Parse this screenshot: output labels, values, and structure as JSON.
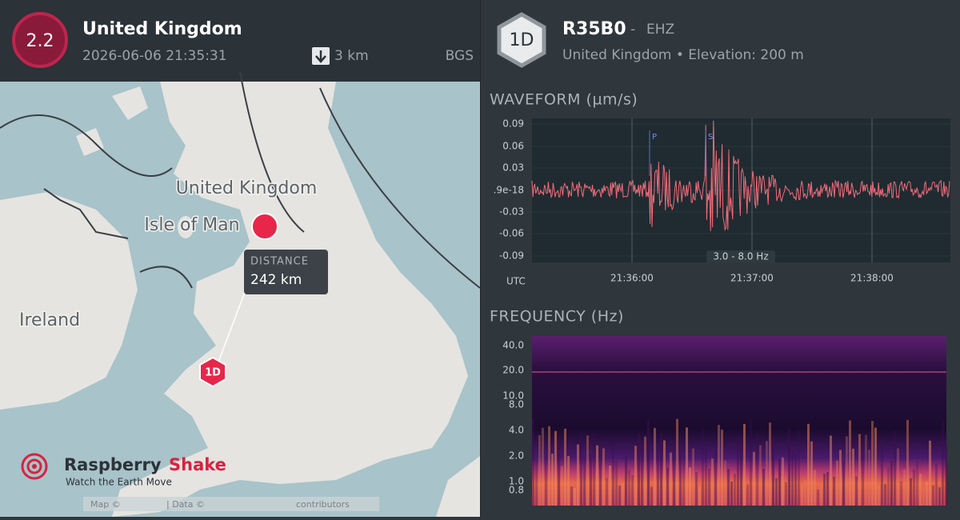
{
  "event": {
    "magnitude": "2.2",
    "region": "United Kingdom",
    "time": "2026-06-06 21:35:31",
    "depth": "3 km",
    "source": "BGS"
  },
  "map": {
    "labels": [
      "United Kingdom",
      "Isle of Man",
      "Ireland"
    ],
    "distance_label": "DISTANCE",
    "distance": "242 km",
    "station_marker": "1D",
    "logo": {
      "name1": "Raspberry",
      "name2": "Shake",
      "tagline": "Watch the Earth Move"
    },
    "attribution": [
      "Map ©",
      "| Data ©",
      "contributors"
    ]
  },
  "station": {
    "badge": "1D",
    "code": "R35B0",
    "separator": "-",
    "channel": "EHZ",
    "location": "United Kingdom • Elevation: 200 m"
  },
  "waveform": {
    "title": "WAVEFORM (µm/s)",
    "yticks": [
      "0.09",
      "0.06",
      "0.03",
      ".9e-18",
      "-0.03",
      "-0.06",
      "-0.09"
    ],
    "xticks": [
      "21:36:00",
      "21:37:00",
      "21:38:00"
    ],
    "x_axis_label": "UTC",
    "phase_labels": [
      "P",
      "S"
    ],
    "filter": "3.0 - 8.0 Hz"
  },
  "frequency": {
    "title": "FREQUENCY (Hz)",
    "yticks": [
      "40.0",
      "20.0",
      "10.0",
      "8.0",
      "4.0",
      "2.0",
      "1.0",
      "0.8"
    ]
  }
}
